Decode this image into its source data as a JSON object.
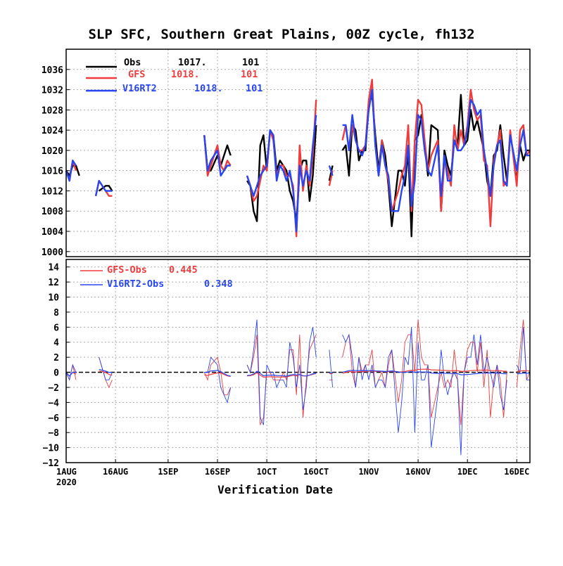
{
  "title": "SLP SFC, Southern Great Plains, 00Z cycle, fh132",
  "colors": {
    "obs": "#000000",
    "gfs": "#f03c3c",
    "v16": "#2846f0",
    "grid": "#aaaaaa",
    "zero": "#000000"
  },
  "chart_data": [
    {
      "type": "line",
      "ylim": [
        999,
        1040
      ],
      "yticks": [
        "1000",
        "1004",
        "1008",
        "1012",
        "1016",
        "1020",
        "1024",
        "1028",
        "1032",
        "1036"
      ],
      "grid": "dotted",
      "legend": "top-left",
      "x_dates": [
        "2020-08-01",
        "2020-08-02",
        "2020-08-03",
        "2020-08-04",
        "2020-08-05",
        "2020-08-10",
        "2020-08-11",
        "2020-08-13",
        "2020-08-14",
        "2020-08-15",
        "2020-09-12",
        "2020-09-13",
        "2020-09-14",
        "2020-09-16",
        "2020-09-17",
        "2020-09-18",
        "2020-09-19",
        "2020-09-20",
        "2020-09-25",
        "2020-09-26",
        "2020-09-27",
        "2020-09-28",
        "2020-09-29",
        "2020-09-30",
        "2020-10-01",
        "2020-10-02",
        "2020-10-03",
        "2020-10-04",
        "2020-10-05",
        "2020-10-06",
        "2020-10-07",
        "2020-10-08",
        "2020-10-09",
        "2020-10-10",
        "2020-10-11",
        "2020-10-12",
        "2020-10-13",
        "2020-10-14",
        "2020-10-15",
        "2020-10-16",
        "2020-10-20",
        "2020-10-21",
        "2020-10-24",
        "2020-10-25",
        "2020-10-26",
        "2020-10-27",
        "2020-10-28",
        "2020-10-29",
        "2020-10-30",
        "2020-10-31",
        "2020-11-01",
        "2020-11-02",
        "2020-11-03",
        "2020-11-04",
        "2020-11-05",
        "2020-11-06",
        "2020-11-07",
        "2020-11-08",
        "2020-11-10",
        "2020-11-11",
        "2020-11-12",
        "2020-11-13",
        "2020-11-14",
        "2020-11-15",
        "2020-11-16",
        "2020-11-17",
        "2020-11-18",
        "2020-11-19",
        "2020-11-20",
        "2020-11-22",
        "2020-11-23",
        "2020-11-24",
        "2020-11-25",
        "2020-11-26",
        "2020-11-27",
        "2020-11-28",
        "2020-11-29",
        "2020-11-30",
        "2020-12-01",
        "2020-12-02",
        "2020-12-03",
        "2020-12-04",
        "2020-12-05",
        "2020-12-06",
        "2020-12-07",
        "2020-12-08",
        "2020-12-09",
        "2020-12-10",
        "2020-12-11",
        "2020-12-12",
        "2020-12-13",
        "2020-12-14",
        "2020-12-16",
        "2020-12-17",
        "2020-12-18",
        "2020-12-19",
        "2020-12-20"
      ],
      "series": [
        {
          "name": "Obs",
          "stat1": "1017.",
          "stat2": "101",
          "values": [
            1016,
            1015,
            1017,
            1017,
            1015,
            null,
            1012,
            1013,
            1013,
            1012,
            1023,
            1016,
            1016,
            1019,
            1017,
            1019,
            1021,
            1019,
            1014,
            1013,
            1008,
            1006,
            1021,
            1023,
            1016,
            1024,
            1023,
            1016,
            1018,
            1017,
            1016,
            1012,
            1010,
            1006,
            1016,
            1018,
            1018,
            1010,
            1015,
            1025,
            1014,
            1017,
            1020,
            1021,
            1015,
            1025,
            1024,
            1018,
            1020,
            1020,
            1029,
            1031,
            1023,
            1016,
            1022,
            1019,
            1013,
            1005,
            1016,
            1016,
            1013,
            1020,
            1003,
            1022,
            1023,
            1027,
            1021,
            1015,
            1025,
            1024,
            1008,
            1020,
            1017,
            1015,
            1022,
            1021,
            1031,
            1021,
            1022,
            1028,
            1024,
            1026,
            1023,
            1020,
            1014,
            1011,
            1019,
            1020,
            1025,
            1019,
            1014,
            null,
            1015,
            1021,
            1018,
            1020,
            1020
          ]
        },
        {
          "name": "GFS",
          "stat1": "1018.",
          "stat2": "101",
          "values": [
            1016,
            1014,
            1018,
            1016,
            null,
            1011,
            1014,
            1012,
            1011,
            1011,
            1023,
            1015,
            1017,
            1021,
            1017,
            1016,
            1018,
            1017,
            1015,
            1013,
            1010,
            1011,
            1014,
            1017,
            1016,
            1024,
            1022,
            1015,
            1017,
            1017,
            1015,
            1015,
            1013,
            1003,
            1021,
            1012,
            1017,
            1013,
            1019,
            1030,
            1013,
            1016,
            1022,
            1025,
            1020,
            1025,
            1022,
            1020,
            1020,
            1021,
            1030,
            1034,
            1021,
            1015,
            1022,
            1017,
            1014,
            1008,
            1012,
            1015,
            1017,
            1025,
            1008,
            1022,
            1030,
            1029,
            1022,
            1016,
            1019,
            1022,
            1008,
            1018,
            1016,
            1013,
            1025,
            1020,
            1024,
            1021,
            1025,
            1032,
            1028,
            1026,
            1027,
            1018,
            1017,
            1005,
            1018,
            1021,
            1024,
            1013,
            1014,
            1024,
            1013,
            1024,
            1025,
            1019,
            1020
          ]
        },
        {
          "name": "V16RT2",
          "stat1": "1018.",
          "stat2": "101",
          "values": [
            1016,
            1014,
            1018,
            1017,
            null,
            1011,
            1014,
            1012,
            1012,
            1012,
            1023,
            1016,
            1018,
            1020,
            1015,
            1016,
            1017,
            1017,
            1015,
            1013,
            1011,
            1013,
            1015,
            1016,
            1017,
            1024,
            1023,
            1014,
            1017,
            1016,
            1014,
            1016,
            1012,
            1004,
            1017,
            1013,
            1016,
            1014,
            1021,
            1027,
            1017,
            1015,
            1025,
            1025,
            1020,
            1027,
            1022,
            1020,
            1019,
            1021,
            1028,
            1032,
            1021,
            1015,
            1021,
            1017,
            1015,
            1008,
            1008,
            1012,
            1015,
            1021,
            1009,
            1014,
            1027,
            1026,
            1020,
            1016,
            1015,
            1021,
            1011,
            1019,
            1014,
            1014,
            1022,
            1020,
            1020,
            1021,
            1024,
            1030,
            1029,
            1027,
            1028,
            1020,
            1016,
            1011,
            1017,
            1021,
            1022,
            1014,
            1013,
            1023,
            1016,
            1021,
            1024,
            1019,
            1019
          ]
        }
      ]
    },
    {
      "type": "line",
      "ylim": [
        -12,
        15
      ],
      "yticks": [
        "−12",
        "−10",
        "−8",
        "−6",
        "−4",
        "−2",
        "0",
        "2",
        "4",
        "6",
        "8",
        "10",
        "12",
        "14"
      ],
      "grid": "dotted",
      "legend": "top-left",
      "xlabel": "Verification Date",
      "xticks": [
        {
          "date": "2020-08-01",
          "label": "1AUG",
          "sub": "2020"
        },
        {
          "date": "2020-08-16",
          "label": "16AUG"
        },
        {
          "date": "2020-09-01",
          "label": "1SEP"
        },
        {
          "date": "2020-09-16",
          "label": "16SEP"
        },
        {
          "date": "2020-10-01",
          "label": "1OCT"
        },
        {
          "date": "2020-10-16",
          "label": "16OCT"
        },
        {
          "date": "2020-11-01",
          "label": "1NOV"
        },
        {
          "date": "2020-11-16",
          "label": "16NOV"
        },
        {
          "date": "2020-12-01",
          "label": "1DEC"
        },
        {
          "date": "2020-12-16",
          "label": "16DEC"
        }
      ],
      "x_range": [
        "2020-08-01",
        "2020-12-20"
      ],
      "series": [
        {
          "name": "GFS-Obs",
          "stat": "0.445"
        },
        {
          "name": "V16RT2-Obs",
          "stat": "0.348"
        }
      ]
    }
  ]
}
